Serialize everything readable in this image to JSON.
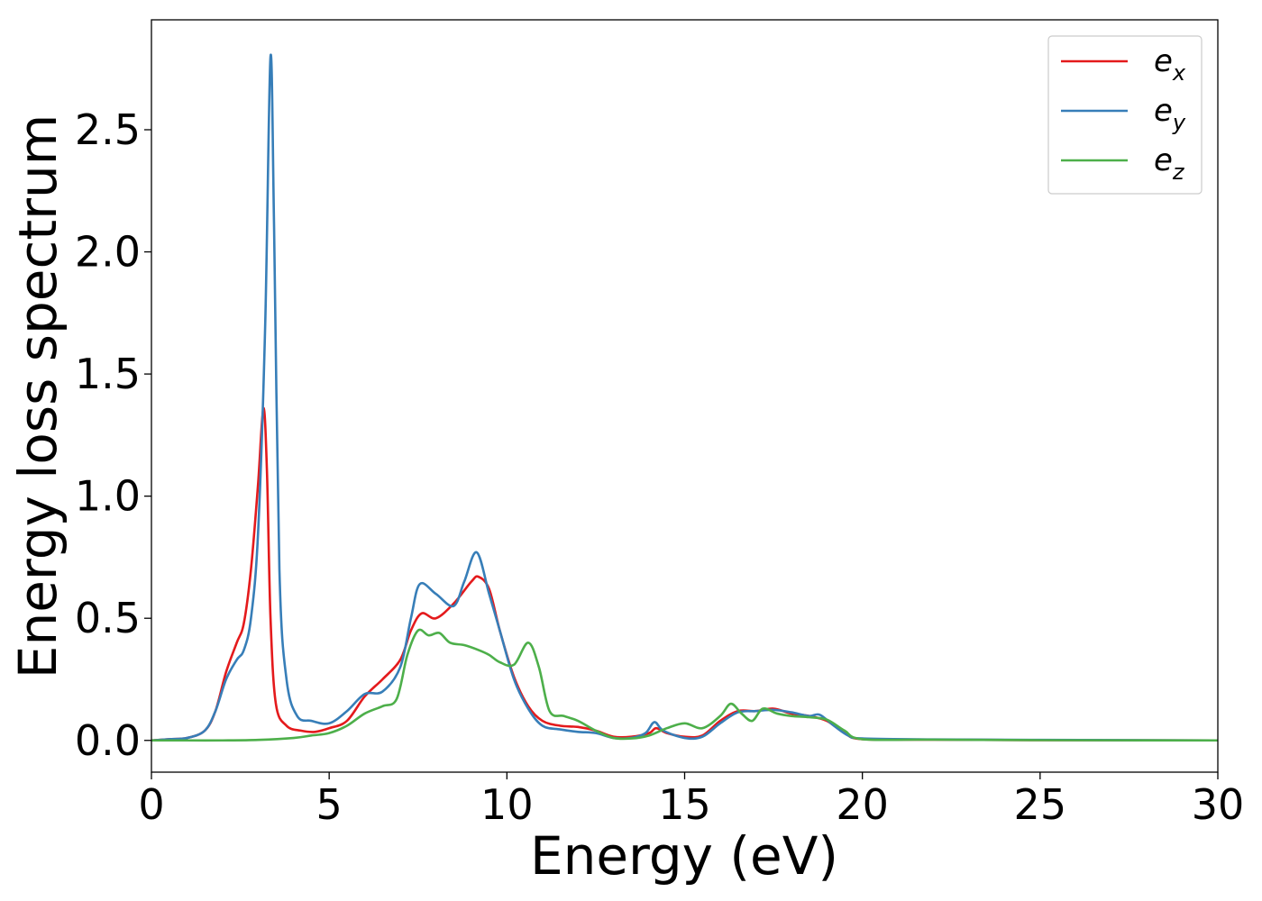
{
  "chart_data": {
    "type": "line",
    "title": "",
    "xlabel": "Energy (eV)",
    "ylabel": "Energy loss spectrum",
    "xlim": [
      0,
      30
    ],
    "ylim": [
      -0.13,
      2.95
    ],
    "xticks": [
      0,
      5,
      10,
      15,
      20,
      25,
      30
    ],
    "xtick_labels": [
      "0",
      "5",
      "10",
      "15",
      "20",
      "25",
      "30"
    ],
    "yticks": [
      0.0,
      0.5,
      1.0,
      1.5,
      2.0,
      2.5
    ],
    "ytick_labels": [
      "0.0",
      "0.5",
      "1.0",
      "1.5",
      "2.0",
      "2.5"
    ],
    "grid": false,
    "legend": {
      "position": "top-right"
    },
    "series": [
      {
        "name": "e_x",
        "label_base": "e",
        "label_sub": "x",
        "color": "#e41a1c",
        "points": [
          [
            0,
            0.0
          ],
          [
            0.5,
            0.005
          ],
          [
            1.0,
            0.01
          ],
          [
            1.5,
            0.04
          ],
          [
            1.8,
            0.12
          ],
          [
            2.1,
            0.28
          ],
          [
            2.4,
            0.4
          ],
          [
            2.6,
            0.48
          ],
          [
            2.8,
            0.7
          ],
          [
            3.0,
            1.05
          ],
          [
            3.15,
            1.36
          ],
          [
            3.25,
            1.1
          ],
          [
            3.35,
            0.5
          ],
          [
            3.5,
            0.15
          ],
          [
            3.8,
            0.06
          ],
          [
            4.2,
            0.04
          ],
          [
            4.6,
            0.035
          ],
          [
            5.0,
            0.05
          ],
          [
            5.5,
            0.08
          ],
          [
            6.0,
            0.18
          ],
          [
            6.5,
            0.25
          ],
          [
            7.0,
            0.33
          ],
          [
            7.3,
            0.45
          ],
          [
            7.6,
            0.52
          ],
          [
            8.0,
            0.5
          ],
          [
            8.5,
            0.56
          ],
          [
            9.0,
            0.65
          ],
          [
            9.2,
            0.67
          ],
          [
            9.5,
            0.62
          ],
          [
            9.8,
            0.45
          ],
          [
            10.2,
            0.26
          ],
          [
            10.6,
            0.14
          ],
          [
            11.0,
            0.08
          ],
          [
            11.5,
            0.06
          ],
          [
            12.0,
            0.055
          ],
          [
            12.5,
            0.04
          ],
          [
            13.0,
            0.015
          ],
          [
            13.5,
            0.015
          ],
          [
            14.0,
            0.03
          ],
          [
            14.2,
            0.05
          ],
          [
            14.5,
            0.03
          ],
          [
            15.0,
            0.015
          ],
          [
            15.5,
            0.02
          ],
          [
            16.0,
            0.08
          ],
          [
            16.5,
            0.12
          ],
          [
            17.0,
            0.12
          ],
          [
            17.5,
            0.13
          ],
          [
            18.0,
            0.11
          ],
          [
            18.5,
            0.1
          ],
          [
            19.0,
            0.08
          ],
          [
            19.5,
            0.03
          ],
          [
            20.0,
            0.005
          ],
          [
            22.0,
            0.003
          ],
          [
            25.0,
            0.001
          ],
          [
            30.0,
            0.0
          ]
        ]
      },
      {
        "name": "e_y",
        "label_base": "e",
        "label_sub": "y",
        "color": "#377eb8",
        "points": [
          [
            0,
            0.0
          ],
          [
            0.5,
            0.005
          ],
          [
            1.0,
            0.01
          ],
          [
            1.5,
            0.04
          ],
          [
            1.8,
            0.12
          ],
          [
            2.1,
            0.25
          ],
          [
            2.4,
            0.33
          ],
          [
            2.6,
            0.37
          ],
          [
            2.8,
            0.5
          ],
          [
            3.0,
            0.85
          ],
          [
            3.2,
            1.7
          ],
          [
            3.35,
            2.8
          ],
          [
            3.45,
            2.1
          ],
          [
            3.6,
            0.7
          ],
          [
            3.8,
            0.25
          ],
          [
            4.1,
            0.1
          ],
          [
            4.5,
            0.08
          ],
          [
            5.0,
            0.07
          ],
          [
            5.5,
            0.12
          ],
          [
            6.0,
            0.19
          ],
          [
            6.5,
            0.2
          ],
          [
            7.0,
            0.3
          ],
          [
            7.3,
            0.5
          ],
          [
            7.55,
            0.64
          ],
          [
            8.0,
            0.6
          ],
          [
            8.5,
            0.55
          ],
          [
            8.8,
            0.65
          ],
          [
            9.15,
            0.77
          ],
          [
            9.5,
            0.6
          ],
          [
            9.8,
            0.45
          ],
          [
            10.2,
            0.25
          ],
          [
            10.6,
            0.13
          ],
          [
            11.0,
            0.06
          ],
          [
            11.5,
            0.045
          ],
          [
            12.0,
            0.035
          ],
          [
            12.5,
            0.03
          ],
          [
            13.0,
            0.01
          ],
          [
            13.5,
            0.01
          ],
          [
            13.9,
            0.03
          ],
          [
            14.15,
            0.075
          ],
          [
            14.4,
            0.04
          ],
          [
            15.0,
            0.01
          ],
          [
            15.5,
            0.015
          ],
          [
            16.0,
            0.07
          ],
          [
            16.5,
            0.115
          ],
          [
            17.0,
            0.12
          ],
          [
            17.5,
            0.125
          ],
          [
            18.0,
            0.115
          ],
          [
            18.5,
            0.1
          ],
          [
            18.8,
            0.105
          ],
          [
            19.2,
            0.06
          ],
          [
            19.6,
            0.02
          ],
          [
            20.0,
            0.008
          ],
          [
            22.0,
            0.004
          ],
          [
            25.0,
            0.002
          ],
          [
            30.0,
            0.0
          ]
        ]
      },
      {
        "name": "e_z",
        "label_base": "e",
        "label_sub": "z",
        "color": "#4daf4a",
        "points": [
          [
            0,
            0.0
          ],
          [
            1.0,
            0.0
          ],
          [
            2.0,
            0.0
          ],
          [
            3.0,
            0.002
          ],
          [
            4.0,
            0.01
          ],
          [
            4.5,
            0.02
          ],
          [
            5.0,
            0.03
          ],
          [
            5.5,
            0.06
          ],
          [
            6.0,
            0.11
          ],
          [
            6.5,
            0.14
          ],
          [
            6.9,
            0.17
          ],
          [
            7.2,
            0.35
          ],
          [
            7.5,
            0.45
          ],
          [
            7.8,
            0.43
          ],
          [
            8.1,
            0.44
          ],
          [
            8.4,
            0.4
          ],
          [
            8.8,
            0.39
          ],
          [
            9.2,
            0.37
          ],
          [
            9.5,
            0.35
          ],
          [
            9.8,
            0.32
          ],
          [
            10.2,
            0.31
          ],
          [
            10.6,
            0.4
          ],
          [
            10.9,
            0.3
          ],
          [
            11.2,
            0.12
          ],
          [
            11.6,
            0.1
          ],
          [
            12.0,
            0.08
          ],
          [
            12.5,
            0.04
          ],
          [
            13.0,
            0.01
          ],
          [
            13.5,
            0.008
          ],
          [
            14.0,
            0.02
          ],
          [
            14.5,
            0.05
          ],
          [
            15.0,
            0.07
          ],
          [
            15.5,
            0.05
          ],
          [
            16.0,
            0.1
          ],
          [
            16.3,
            0.15
          ],
          [
            16.6,
            0.11
          ],
          [
            16.9,
            0.08
          ],
          [
            17.2,
            0.13
          ],
          [
            17.6,
            0.11
          ],
          [
            18.0,
            0.1
          ],
          [
            18.5,
            0.095
          ],
          [
            19.0,
            0.085
          ],
          [
            19.5,
            0.04
          ],
          [
            20.0,
            0.005
          ],
          [
            22.0,
            0.003
          ],
          [
            25.0,
            0.001
          ],
          [
            30.0,
            0.0
          ]
        ]
      }
    ]
  }
}
